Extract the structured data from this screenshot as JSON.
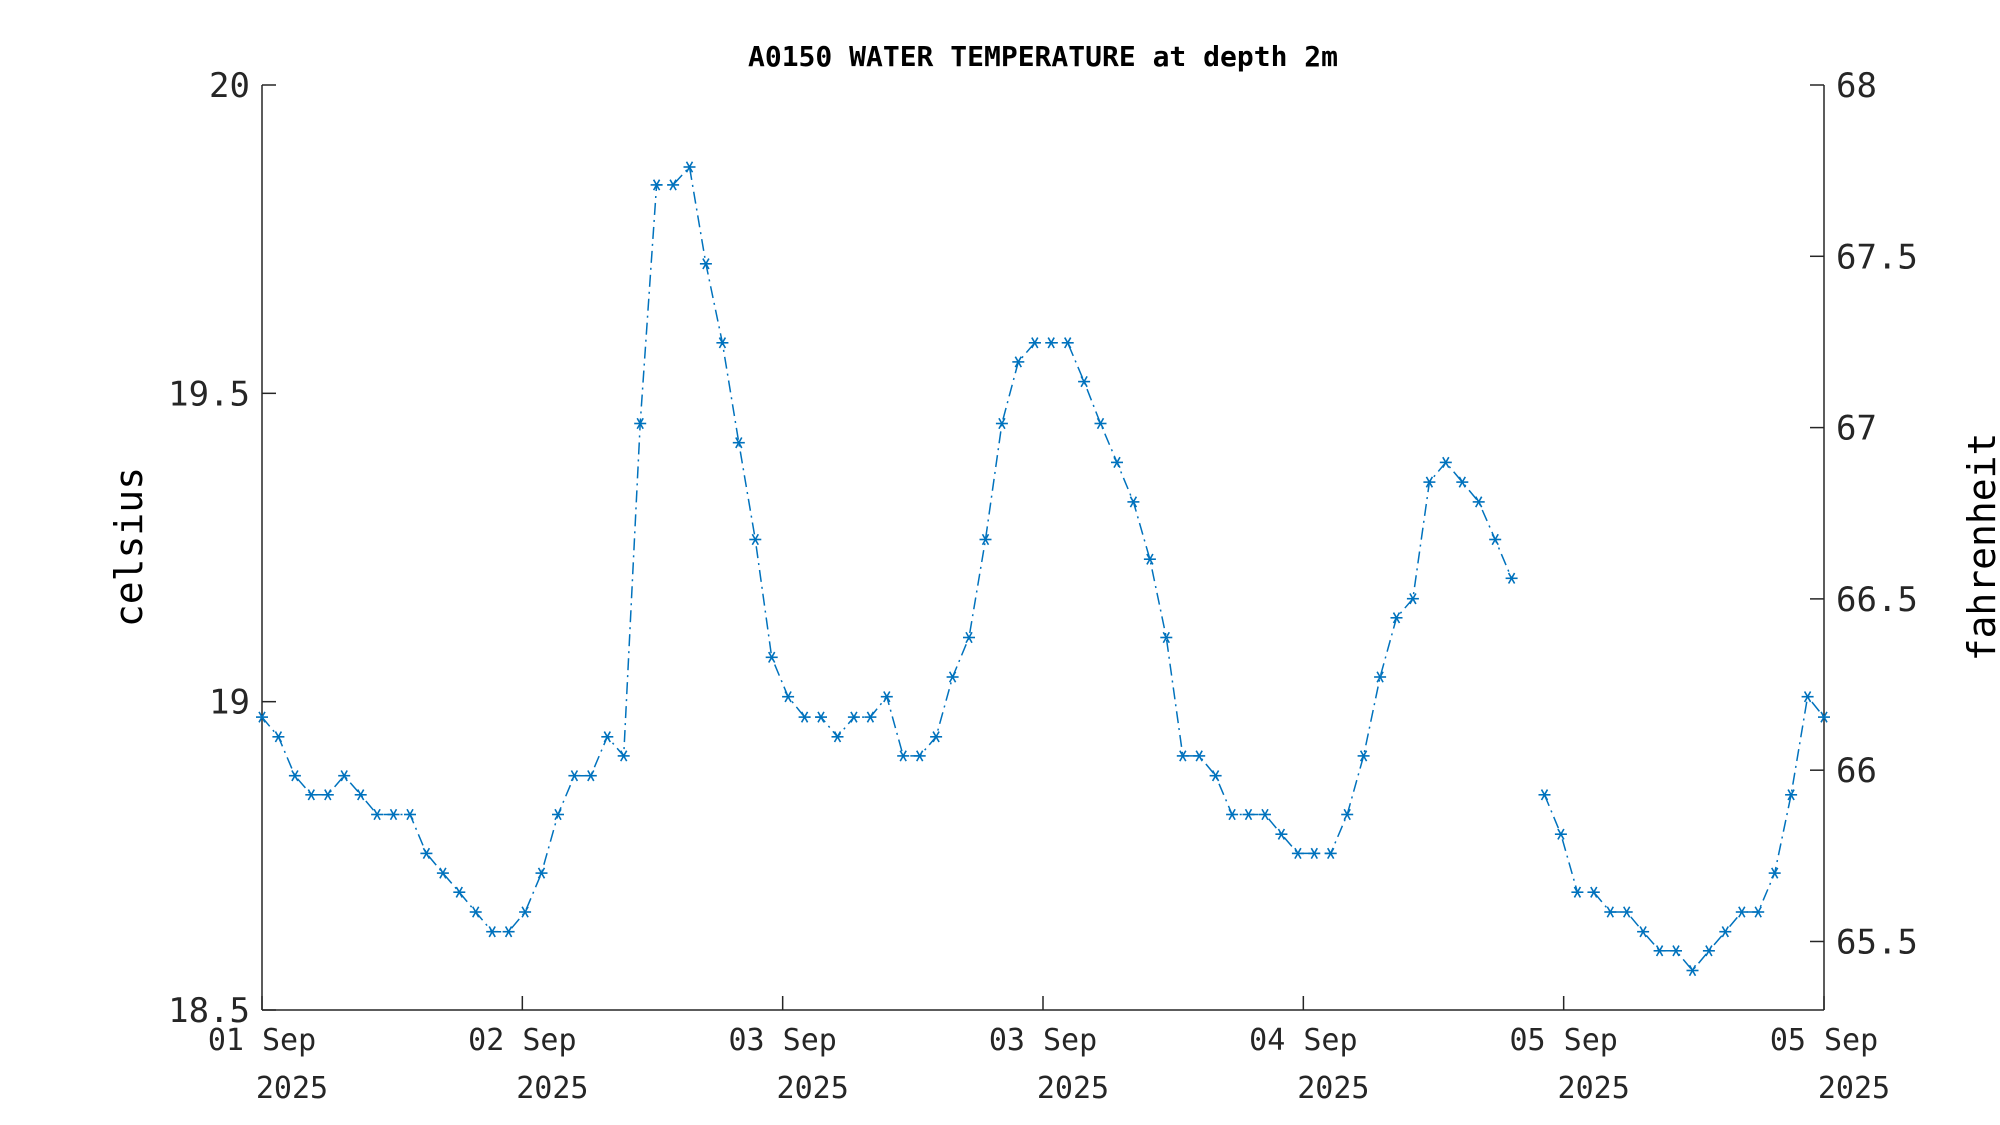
{
  "chart_data": {
    "type": "line",
    "title": "A0150 WATER TEMPERATURE at depth 2m",
    "ylabel": "celsius",
    "y2label": "fahrenheit",
    "ylim": [
      18.5,
      20
    ],
    "y2lim": [
      65.3,
      68
    ],
    "yticks": [
      "18.5",
      "19",
      "19.5",
      "20"
    ],
    "y2ticks": [
      "65.5",
      "66",
      "66.5",
      "67",
      "67.5",
      "68"
    ],
    "xticks": [
      {
        "day": "01 Sep",
        "year": "2025"
      },
      {
        "day": "02 Sep",
        "year": "2025"
      },
      {
        "day": "03 Sep",
        "year": "2025"
      },
      {
        "day": "03 Sep",
        "year": "2025"
      },
      {
        "day": "04 Sep",
        "year": "2025"
      },
      {
        "day": "05 Sep",
        "year": "2025"
      },
      {
        "day": "05 Sep",
        "year": "2025"
      }
    ],
    "line_color": "#0072BD",
    "marker": "asterisk",
    "line_style": "dash-dot",
    "grid": false,
    "series": [
      {
        "segments": [
          [
            18.975,
            18.943,
            18.88,
            18.849,
            18.849,
            18.88,
            18.849,
            18.817,
            18.817,
            18.817,
            18.754,
            18.722,
            18.691,
            18.659,
            18.627,
            18.627,
            18.659,
            18.722,
            18.817,
            18.88,
            18.88,
            18.943,
            18.912,
            19.451,
            19.838,
            19.838,
            19.867,
            19.71,
            19.582,
            19.42,
            19.263,
            19.072,
            19.008,
            18.975,
            18.975,
            18.943,
            18.975,
            18.975,
            19.008,
            18.912,
            18.912,
            18.943,
            19.04,
            19.104,
            19.263,
            19.451,
            19.551,
            19.582,
            19.582,
            19.582,
            19.519,
            19.451,
            19.388,
            19.324,
            19.231,
            19.104,
            18.912,
            18.912,
            18.88,
            18.817,
            18.817,
            18.817,
            18.785,
            18.754,
            18.754,
            18.754,
            18.817,
            18.912,
            19.04,
            19.136,
            19.167,
            19.356,
            19.388,
            19.356,
            19.324,
            19.263,
            19.2
          ],
          [
            18.849,
            18.785,
            18.691,
            18.691,
            18.659,
            18.659,
            18.627,
            18.596,
            18.596,
            18.564,
            18.596,
            18.627,
            18.659,
            18.659,
            18.722,
            18.849,
            19.008,
            18.975
          ]
        ]
      }
    ]
  }
}
